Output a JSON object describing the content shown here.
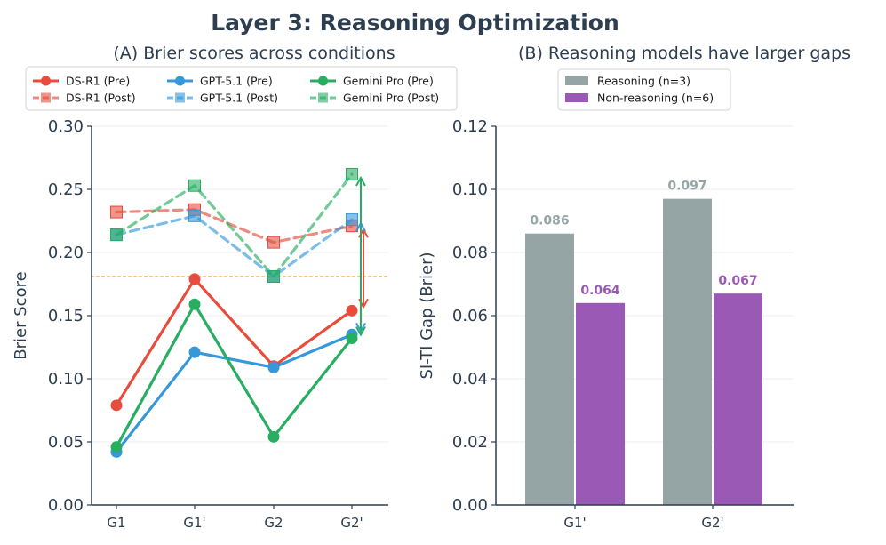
{
  "figure": {
    "title": "Layer 3: Reasoning Optimization"
  },
  "chart_data": [
    {
      "type": "line",
      "title": "(A) Brier scores across conditions",
      "xlabel": "",
      "ylabel": "Brier Score",
      "categories": [
        "G1",
        "G1'",
        "G2",
        "G2'"
      ],
      "ylim": [
        0,
        0.3
      ],
      "yticks": [
        "0.00",
        "0.05",
        "0.10",
        "0.15",
        "0.20",
        "0.25",
        "0.30"
      ],
      "grid": true,
      "legend_position": "top",
      "reference_line": 0.181,
      "series": [
        {
          "name": "DS-R1 (Pre)",
          "values": [
            0.079,
            0.179,
            0.11,
            0.154
          ],
          "color": "#e74c3c",
          "style": "solid",
          "marker": "circle"
        },
        {
          "name": "DS-R1 (Post)",
          "values": [
            0.232,
            0.234,
            0.208,
            0.221
          ],
          "color": "#e74c3c",
          "style": "dashed",
          "marker": "square"
        },
        {
          "name": "GPT-5.1 (Pre)",
          "values": [
            0.042,
            0.121,
            0.109,
            0.135
          ],
          "color": "#3498db",
          "style": "solid",
          "marker": "circle"
        },
        {
          "name": "GPT-5.1 (Post)",
          "values": [
            0.214,
            0.229,
            0.181,
            0.226
          ],
          "color": "#3498db",
          "style": "dashed",
          "marker": "square"
        },
        {
          "name": "Gemini Pro (Pre)",
          "values": [
            0.046,
            0.159,
            0.054,
            0.132
          ],
          "color": "#27ae60",
          "style": "solid",
          "marker": "circle"
        },
        {
          "name": "Gemini Pro (Post)",
          "values": [
            0.214,
            0.253,
            0.181,
            0.262
          ],
          "color": "#27ae60",
          "style": "dashed",
          "marker": "square"
        }
      ]
    },
    {
      "type": "bar",
      "title": "(B) Reasoning models have larger gaps",
      "xlabel": "",
      "ylabel": "SI-TI Gap (Brier)",
      "categories": [
        "G1'",
        "G2'"
      ],
      "ylim": [
        0,
        0.12
      ],
      "yticks": [
        "0.00",
        "0.02",
        "0.04",
        "0.06",
        "0.08",
        "0.10",
        "0.12"
      ],
      "grid": true,
      "legend_position": "top",
      "series": [
        {
          "name": "Reasoning (n=3)",
          "values": [
            0.086,
            0.097
          ],
          "labels": [
            "0.086",
            "0.097"
          ],
          "color": "#95a5a6"
        },
        {
          "name": "Non-reasoning (n=6)",
          "values": [
            0.064,
            0.067
          ],
          "labels": [
            "0.064",
            "0.067"
          ],
          "color": "#9b59b6"
        }
      ]
    }
  ]
}
